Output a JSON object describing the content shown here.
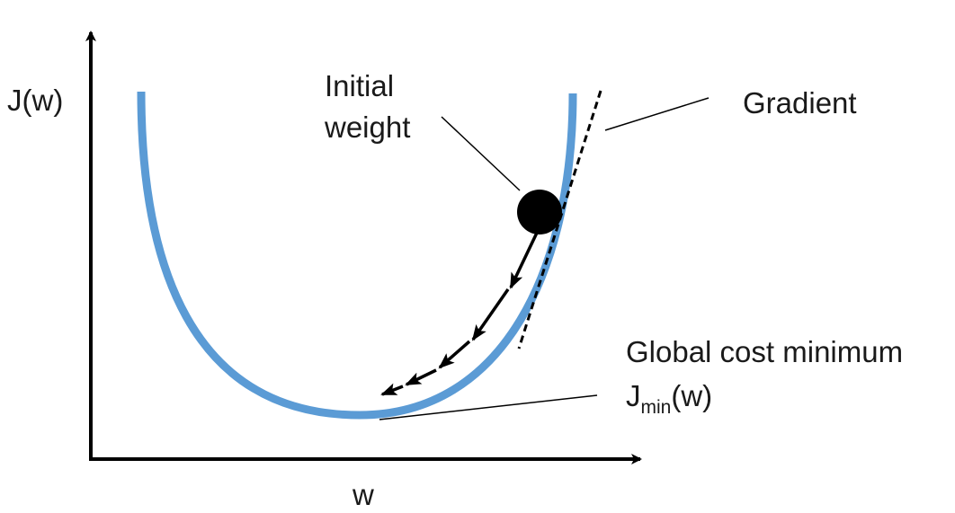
{
  "axes": {
    "y_label": "J(w)",
    "x_label": "w"
  },
  "annotations": {
    "initial_weight_line1": "Initial",
    "initial_weight_line2": "weight",
    "gradient": "Gradient",
    "global_min_line1": "Global cost minimum",
    "global_min_base": "J",
    "global_min_sub": "min",
    "global_min_tail": "(w)"
  },
  "colors": {
    "curve": "#5B9BD5",
    "axis": "#000000",
    "text": "#1a1a1a"
  },
  "icons": {
    "ball": "filled-circle",
    "steps": "arrow-chain"
  }
}
